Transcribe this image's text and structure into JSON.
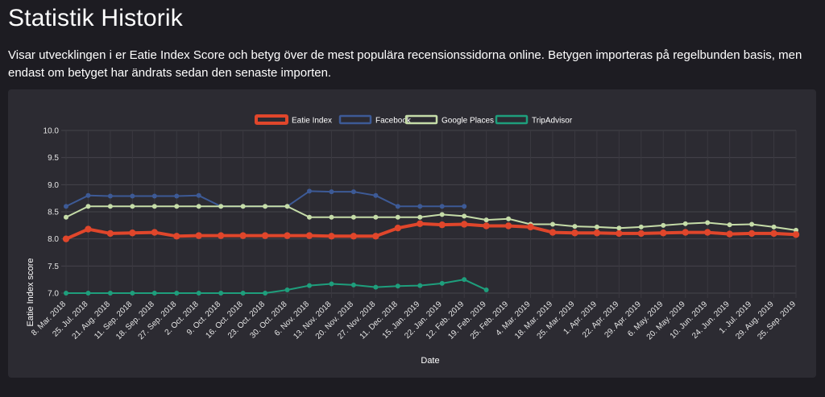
{
  "page": {
    "title": "Statistik Historik",
    "description": "Visar utvecklingen i er Eatie Index Score och betyg över de mest populära recensionssidorna online. Betygen importeras på regelbunden basis, men endast om betyget har ändrats sedan den senaste importen."
  },
  "chart_data": {
    "type": "line",
    "title": "",
    "xlabel": "Date",
    "ylabel": "Eatie Index score",
    "ylim": [
      7.0,
      10.0
    ],
    "yticks": [
      "7.0",
      "7.5",
      "8.0",
      "8.5",
      "9.0",
      "9.5",
      "10.0"
    ],
    "grid": true,
    "legend_position": "top-center",
    "categories": [
      "8. Mar. 2018",
      "25. Jul. 2018",
      "21. Aug. 2018",
      "11. Sep. 2018",
      "18. Sep. 2018",
      "27. Sep. 2018",
      "2. Oct. 2018",
      "9. Oct. 2018",
      "16. Oct. 2018",
      "23. Oct. 2018",
      "30. Oct. 2018",
      "6. Nov. 2018",
      "13. Nov. 2018",
      "20. Nov. 2018",
      "27. Nov. 2018",
      "11. Dec. 2018",
      "15. Jan. 2019",
      "22. Jan. 2019",
      "12. Feb. 2019",
      "19. Feb. 2019",
      "25. Feb. 2019",
      "4. Mar. 2019",
      "18. Mar. 2019",
      "25. Mar. 2019",
      "1. Apr. 2019",
      "22. Apr. 2019",
      "29. Apr. 2019",
      "6. May. 2019",
      "20. May. 2019",
      "10. Jun. 2019",
      "24. Jun. 2019",
      "1. Jul. 2019",
      "29. Aug. 2019",
      "25. Sep. 2019"
    ],
    "series": [
      {
        "name": "Eatie Index",
        "color": "#e0462b",
        "style": "thick",
        "values": [
          8.0,
          8.18,
          8.1,
          8.11,
          8.12,
          8.05,
          8.06,
          8.06,
          8.06,
          8.06,
          8.06,
          8.06,
          8.05,
          8.05,
          8.05,
          8.2,
          8.28,
          8.26,
          8.27,
          8.24,
          8.24,
          8.22,
          8.12,
          8.11,
          8.11,
          8.1,
          8.1,
          8.11,
          8.12,
          8.12,
          8.09,
          8.1,
          8.1,
          8.08
        ]
      },
      {
        "name": "Facebook",
        "color": "#3d5a96",
        "style": "thin",
        "values": [
          8.6,
          8.8,
          8.79,
          8.79,
          8.79,
          8.79,
          8.8,
          8.6,
          8.6,
          8.6,
          8.6,
          8.88,
          8.87,
          8.87,
          8.8,
          8.6,
          8.6,
          8.6,
          8.6,
          null,
          null,
          null,
          null,
          null,
          null,
          null,
          null,
          null,
          null,
          null,
          null,
          null,
          null,
          null
        ]
      },
      {
        "name": "Google Places",
        "color": "#c5dca8",
        "style": "thin",
        "values": [
          8.4,
          8.6,
          8.6,
          8.6,
          8.6,
          8.6,
          8.6,
          8.6,
          8.6,
          8.6,
          8.6,
          8.4,
          8.4,
          8.4,
          8.4,
          8.4,
          8.4,
          8.45,
          8.42,
          8.35,
          8.37,
          8.27,
          8.27,
          8.23,
          8.22,
          8.2,
          8.22,
          8.25,
          8.28,
          8.3,
          8.26,
          8.27,
          8.22,
          8.16
        ]
      },
      {
        "name": "TripAdvisor",
        "color": "#1e9e7c",
        "style": "thin",
        "values": [
          7.0,
          7.0,
          7.0,
          7.0,
          7.0,
          7.0,
          7.0,
          7.0,
          7.0,
          7.0,
          7.06,
          7.14,
          7.17,
          7.15,
          7.11,
          7.13,
          7.14,
          7.18,
          7.25,
          7.06,
          null,
          null,
          null,
          null,
          null,
          null,
          null,
          null,
          null,
          null,
          null,
          null,
          null,
          null
        ]
      }
    ]
  }
}
